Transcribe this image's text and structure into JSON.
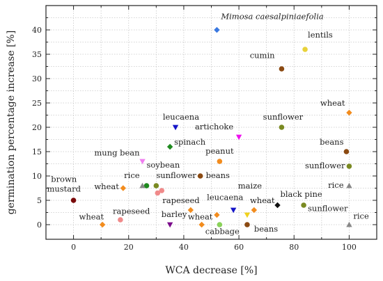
{
  "chart_data": {
    "type": "scatter",
    "title": "",
    "xlabel": "WCA decrease [%]",
    "ylabel": "germination percentage increase [%]",
    "xlim": [
      -10,
      110
    ],
    "ylim": [
      -3,
      45
    ],
    "xticks": [
      0,
      20,
      40,
      60,
      80,
      100
    ],
    "yticks": [
      0,
      5,
      10,
      15,
      20,
      25,
      30,
      35,
      40
    ],
    "grid": true,
    "legend": "none",
    "points": [
      {
        "label": "Mimosa caesalpiniaefolia",
        "x": 52,
        "y": 40,
        "marker": "diamond",
        "color": "#3a78e0",
        "italic": true,
        "lx": 53.5,
        "ly": 42.2,
        "anchor": "start"
      },
      {
        "label": "lentils",
        "x": 84,
        "y": 36,
        "marker": "circle",
        "color": "#e8d23a",
        "lx": 85,
        "ly": 38.4,
        "anchor": "start"
      },
      {
        "label": "cumin",
        "x": 75.5,
        "y": 32,
        "marker": "circle",
        "color": "#8b4a12",
        "lx": 73,
        "ly": 34.2,
        "anchor": "end"
      },
      {
        "label": "wheat",
        "x": 100,
        "y": 23,
        "marker": "diamond",
        "color": "#f28c1e",
        "lx": 98.5,
        "ly": 24.4,
        "anchor": "end"
      },
      {
        "label": "sunflower",
        "x": 75.5,
        "y": 20,
        "marker": "circle",
        "color": "#7a8a22",
        "lx": 76,
        "ly": 21.6,
        "anchor": "middle"
      },
      {
        "label": "leucaena",
        "x": 37,
        "y": 20,
        "marker": "triangle-down",
        "color": "#1515c8",
        "lx": 39,
        "ly": 21.6,
        "anchor": "middle"
      },
      {
        "label": "artichoke",
        "x": 60,
        "y": 18,
        "marker": "triangle-down",
        "color": "#ee11ee",
        "lx": 58,
        "ly": 19.6,
        "anchor": "end"
      },
      {
        "label": "spinach",
        "x": 35,
        "y": 16,
        "marker": "diamond",
        "color": "#1f8a1f",
        "lx": 36.5,
        "ly": 16.4,
        "anchor": "start"
      },
      {
        "label": "beans",
        "x": 99,
        "y": 15,
        "marker": "circle",
        "color": "#8b4a12",
        "lx": 98,
        "ly": 16.4,
        "anchor": "end"
      },
      {
        "label": "peanut",
        "x": 53,
        "y": 13,
        "marker": "circle",
        "color": "#f28c1e",
        "lx": 53,
        "ly": 14.6,
        "anchor": "middle"
      },
      {
        "label": "mung bean",
        "x": 25,
        "y": 13,
        "marker": "triangle-down",
        "color": "#f07ef0",
        "lx": 24,
        "ly": 14.2,
        "anchor": "end"
      },
      {
        "label": "sunflower",
        "x": 100,
        "y": 12,
        "marker": "circle",
        "color": "#7a8a22",
        "lx": 98.5,
        "ly": 11.6,
        "anchor": "end"
      },
      {
        "label": "soybean",
        "x": 26.5,
        "y": 8,
        "marker": "circle",
        "color": "#1f8a1f",
        "lx": 26.5,
        "ly": 11.7,
        "anchor": "start"
      },
      {
        "label": "rice",
        "x": 25,
        "y": 8,
        "marker": "triangle-up",
        "color": "#888888",
        "lx": 24,
        "ly": 9.6,
        "anchor": "end"
      },
      {
        "label": "sunflower",
        "x": 30,
        "y": 8,
        "marker": "circle",
        "color": "#7a8a22",
        "lx": 30,
        "ly": 9.6,
        "anchor": "start"
      },
      {
        "label": "beans",
        "x": 46,
        "y": 10,
        "marker": "circle",
        "color": "#8b4a12",
        "lx": 48,
        "ly": 9.6,
        "anchor": "start"
      },
      {
        "label": "rice",
        "x": 100,
        "y": 8,
        "marker": "triangle-up",
        "color": "#888888",
        "lx": 98,
        "ly": 7.6,
        "anchor": "end"
      },
      {
        "label": "wheat",
        "x": 18,
        "y": 7.5,
        "marker": "diamond",
        "color": "#f28c1e",
        "lx": 16.5,
        "ly": 7.3,
        "anchor": "end"
      },
      {
        "label": "",
        "x": 30.5,
        "y": 6.5,
        "marker": "circle",
        "color": "#f08a8a"
      },
      {
        "label": "rapeseed",
        "x": 32,
        "y": 7,
        "marker": "circle",
        "color": "#f08a8a",
        "lx": 39,
        "ly": 4.4,
        "anchor": "middle"
      },
      {
        "label": "brown\nmustard",
        "x": 0,
        "y": 5,
        "marker": "circle",
        "color": "#7a0a0a",
        "lx": -3.5,
        "ly": 7.8,
        "anchor": "middle"
      },
      {
        "label": "maize",
        "x": 63,
        "y": 2,
        "marker": "triangle-down",
        "color": "#f0d21e",
        "lx": 64,
        "ly": 7.4,
        "anchor": "middle"
      },
      {
        "label": "black pine",
        "x": 74,
        "y": 4,
        "marker": "diamond",
        "color": "#111111",
        "lx": 75,
        "ly": 5.7,
        "anchor": "start"
      },
      {
        "label": "leucaena",
        "x": 58,
        "y": 3,
        "marker": "triangle-down",
        "color": "#1515c8",
        "lx": 55,
        "ly": 5.1,
        "anchor": "middle"
      },
      {
        "label": "wheat",
        "x": 65.5,
        "y": 3,
        "marker": "diamond",
        "color": "#f28c1e",
        "lx": 68.5,
        "ly": 4.4,
        "anchor": "middle"
      },
      {
        "label": "sunflower",
        "x": 83.5,
        "y": 4,
        "marker": "circle",
        "color": "#7a8a22",
        "lx": 85,
        "ly": 2.8,
        "anchor": "start"
      },
      {
        "label": "rapeseed",
        "x": 17,
        "y": 1,
        "marker": "circle",
        "color": "#f08a8a",
        "lx": 21,
        "ly": 2.2,
        "anchor": "middle"
      },
      {
        "label": "wheat",
        "x": 42.5,
        "y": 3,
        "marker": "diamond",
        "color": "#f28c1e"
      },
      {
        "label": "wheat",
        "x": 46.5,
        "y": 0,
        "marker": "diamond",
        "color": "#f28c1e",
        "lx": 46,
        "ly": 1.1,
        "anchor": "middle"
      },
      {
        "label": "",
        "x": 52,
        "y": 2,
        "marker": "diamond",
        "color": "#f28c1e"
      },
      {
        "label": "wheat",
        "x": 10.5,
        "y": 0,
        "marker": "diamond",
        "color": "#f28c1e",
        "lx": 6.5,
        "ly": 1.1,
        "anchor": "middle"
      },
      {
        "label": "barley",
        "x": 35,
        "y": 0,
        "marker": "triangle-down",
        "color": "#7a0a8a",
        "lx": 36.5,
        "ly": 1.6,
        "anchor": "middle"
      },
      {
        "label": "cabbage",
        "x": 53,
        "y": 0,
        "marker": "circle",
        "color": "#8ad25a",
        "lx": 54,
        "ly": -1.9,
        "anchor": "middle"
      },
      {
        "label": "beans",
        "x": 63,
        "y": 0,
        "marker": "circle",
        "color": "#8b4a12",
        "lx": 65.5,
        "ly": -1.4,
        "anchor": "start"
      },
      {
        "label": "rice",
        "x": 100,
        "y": 0,
        "marker": "triangle-up",
        "color": "#888888",
        "lx": 101.5,
        "ly": 1.2,
        "anchor": "start"
      }
    ]
  }
}
